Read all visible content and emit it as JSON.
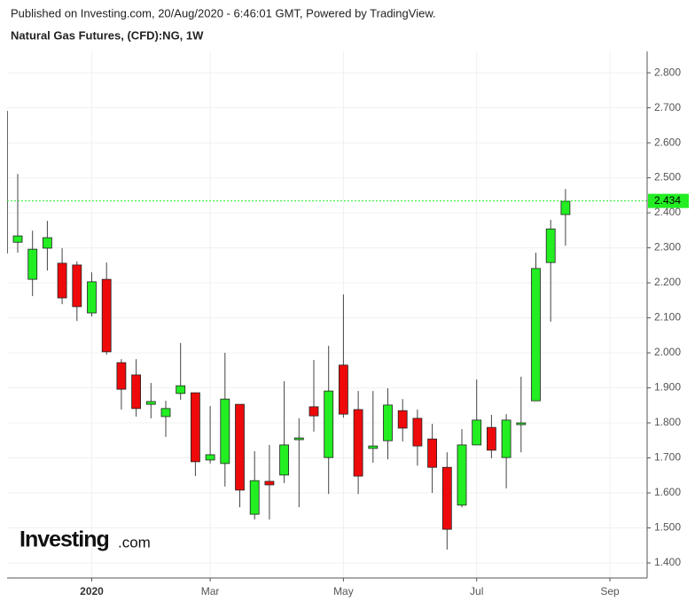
{
  "publisher_note": "Published on Investing.com, 20/Aug/2020 - 6:46:01 GMT, Powered by TradingView.",
  "chart_data": {
    "type": "candlestick",
    "title": "Natural Gas Futures, (CFD):NG, 1W",
    "logo": {
      "brand": "Investing",
      "suffix": ".com"
    },
    "categories": [
      null,
      null,
      null,
      null,
      null,
      null,
      "2020",
      null,
      null,
      null,
      null,
      null,
      null,
      null,
      "Mar",
      null,
      null,
      null,
      null,
      null,
      null,
      null,
      null,
      "May",
      null,
      null,
      null,
      null,
      null,
      null,
      null,
      null,
      "Jul",
      null,
      null,
      null,
      null,
      null,
      null,
      null,
      null,
      "Sep"
    ],
    "open": [
      2.69,
      2.316,
      2.21,
      2.299,
      2.256,
      2.251,
      2.114,
      2.21,
      1.972,
      1.937,
      1.853,
      1.818,
      1.884,
      1.886,
      1.694,
      1.684,
      1.853,
      1.539,
      1.633,
      1.651,
      1.752,
      1.846,
      1.701,
      1.965,
      1.838,
      1.727,
      1.749,
      1.835,
      1.813,
      1.754,
      1.673,
      1.565,
      1.737,
      1.787,
      1.701,
      1.795,
      1.863,
      2.258,
      2.395,
      null,
      null,
      null
    ],
    "high": [
      2.69,
      2.511,
      2.349,
      2.377,
      2.299,
      2.261,
      2.23,
      2.258,
      1.982,
      1.982,
      1.914,
      1.863,
      2.028,
      1.886,
      1.848,
      2.0,
      1.853,
      1.719,
      1.737,
      1.919,
      1.813,
      1.98,
      2.02,
      2.167,
      1.891,
      1.891,
      1.899,
      1.868,
      1.838,
      1.797,
      1.716,
      1.782,
      1.924,
      1.823,
      1.825,
      1.932,
      2.286,
      2.38,
      2.468,
      null,
      null,
      null
    ],
    "low": [
      2.285,
      2.286,
      2.162,
      2.235,
      2.139,
      2.091,
      2.104,
      1.995,
      1.838,
      1.818,
      1.813,
      1.76,
      1.866,
      1.648,
      1.684,
      1.618,
      1.559,
      1.524,
      1.524,
      1.628,
      1.559,
      1.775,
      1.597,
      1.815,
      1.597,
      1.686,
      1.696,
      1.747,
      1.678,
      1.6,
      1.438,
      1.559,
      1.737,
      1.699,
      1.613,
      1.716,
      1.863,
      2.089,
      2.306,
      null,
      null,
      null
    ],
    "close": [
      2.285,
      2.334,
      2.296,
      2.329,
      2.157,
      2.132,
      2.203,
      2.003,
      1.896,
      1.841,
      1.861,
      1.841,
      1.906,
      1.689,
      1.709,
      1.868,
      1.608,
      1.635,
      1.623,
      1.737,
      1.757,
      1.82,
      1.891,
      1.825,
      1.648,
      1.734,
      1.851,
      1.785,
      1.734,
      1.673,
      1.496,
      1.737,
      1.808,
      1.722,
      1.808,
      1.8,
      2.241,
      2.354,
      2.433,
      null,
      null,
      null
    ],
    "up_color": "#22ee22",
    "down_color": "#ee0a0a",
    "last_price": 2.434,
    "last_price_color": "#22ee22",
    "ylim": [
      1.357,
      2.861
    ],
    "yticks": [
      {
        "value": 1.4,
        "label": "1.400"
      },
      {
        "value": 1.5,
        "label": "1.500"
      },
      {
        "value": 1.6,
        "label": "1.600"
      },
      {
        "value": 1.7,
        "label": "1.700"
      },
      {
        "value": 1.8,
        "label": "1.800"
      },
      {
        "value": 1.9,
        "label": "1.900"
      },
      {
        "value": 2.0,
        "label": "2.000"
      },
      {
        "value": 2.1,
        "label": "2.100"
      },
      {
        "value": 2.2,
        "label": "2.200"
      },
      {
        "value": 2.3,
        "label": "2.300"
      },
      {
        "value": 2.4,
        "label": "2.400"
      },
      {
        "value": 2.5,
        "label": "2.500"
      },
      {
        "value": 2.6,
        "label": "2.600"
      },
      {
        "value": 2.7,
        "label": "2.700"
      },
      {
        "value": 2.8,
        "label": "2.800"
      }
    ],
    "grid": true
  }
}
